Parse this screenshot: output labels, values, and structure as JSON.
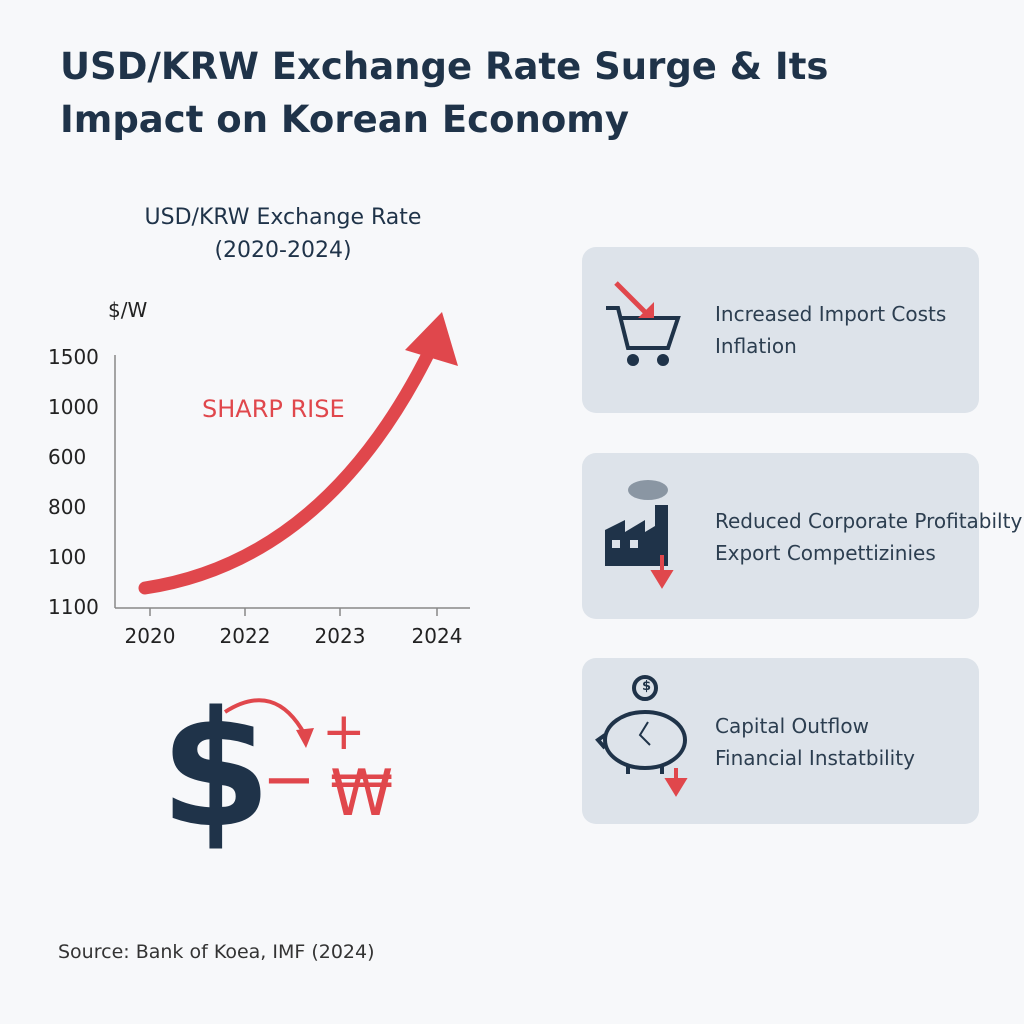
{
  "title": "USD/KRW Exchange Rate Surge & Its Impact on Korean Economy",
  "chart": {
    "title": "USD/KRW Exchange Rate",
    "subtitle": "(2020-2024)",
    "y_unit": "$/W",
    "y_labels": [
      "1500",
      "1000",
      "600",
      "800",
      "100",
      "1100"
    ],
    "x_labels": [
      "2020",
      "2022",
      "2023",
      "2024"
    ],
    "annotation": "SHARP RISE"
  },
  "symbols": {
    "dollar": "$",
    "minus": "−",
    "plus": "+",
    "won": "₩"
  },
  "impacts": [
    {
      "lines": [
        "Increased Import Costs",
        "Inflation"
      ]
    },
    {
      "lines": [
        "Reduced Corporate Profitabilty",
        "Export Compettizinies"
      ]
    },
    {
      "lines": [
        "Capital Outflow",
        "Financial Instatbility"
      ]
    }
  ],
  "source": "Source: Bank of Koea, IMF (2024)"
}
